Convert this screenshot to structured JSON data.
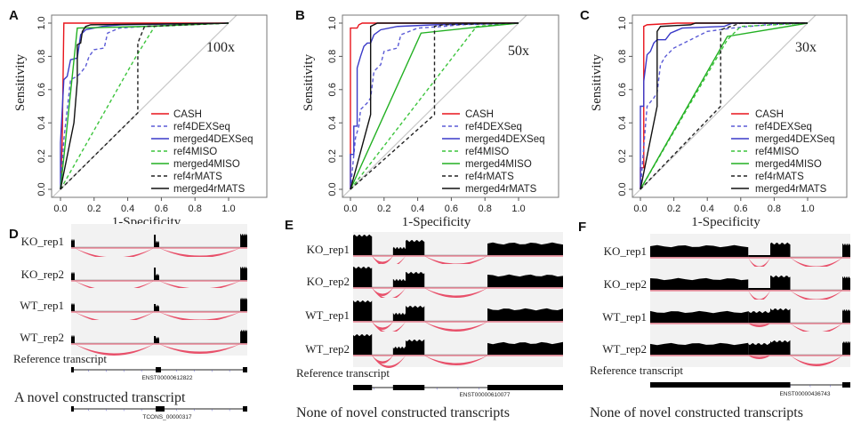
{
  "legend_names": [
    "CASH",
    "ref4DEXSeq",
    "merged4DEXSeq",
    "ref4MISO",
    "merged4MISO",
    "ref4rMATS",
    "merged4rMATS"
  ],
  "series_styles": [
    {
      "color": "#e8141c",
      "dashed": false
    },
    {
      "color": "#5b5bd6",
      "dashed": true
    },
    {
      "color": "#3a3ac8",
      "dashed": false
    },
    {
      "color": "#3cc43c",
      "dashed": true
    },
    {
      "color": "#22b022",
      "dashed": false
    },
    {
      "color": "#222222",
      "dashed": true
    },
    {
      "color": "#111111",
      "dashed": false
    }
  ],
  "chart_data": [
    {
      "type": "line",
      "panel": "A",
      "annotation": "100x",
      "xlabel": "1-Specificity",
      "ylabel": "Sensitivity",
      "xlim": [
        0,
        1
      ],
      "ylim": [
        0,
        1
      ],
      "xticks": [
        "0.0",
        "0.2",
        "0.4",
        "0.6",
        "0.8",
        "1.0"
      ],
      "yticks": [
        "0.0",
        "0.2",
        "0.4",
        "0.6",
        "0.8",
        "1.0"
      ],
      "legend": "bottom-right",
      "reference_diagonal": true,
      "series": [
        {
          "name": "CASH",
          "points": [
            [
              0,
              0
            ],
            [
              0.01,
              0.28
            ],
            [
              0.02,
              1
            ],
            [
              1,
              1
            ]
          ]
        },
        {
          "name": "ref4DEXSeq",
          "points": [
            [
              0,
              0
            ],
            [
              0.02,
              0.3
            ],
            [
              0.04,
              0.48
            ],
            [
              0.06,
              0.66
            ],
            [
              0.1,
              0.68
            ],
            [
              0.12,
              0.7
            ],
            [
              0.15,
              0.74
            ],
            [
              0.17,
              0.8
            ],
            [
              0.2,
              0.84
            ],
            [
              0.26,
              0.85
            ],
            [
              0.28,
              0.94
            ],
            [
              0.35,
              0.97
            ],
            [
              0.5,
              0.98
            ],
            [
              1,
              1
            ]
          ]
        },
        {
          "name": "merged4DEXSeq",
          "points": [
            [
              0,
              0
            ],
            [
              0,
              0.28
            ],
            [
              0.02,
              0.66
            ],
            [
              0.04,
              0.68
            ],
            [
              0.06,
              0.78
            ],
            [
              0.1,
              0.79
            ],
            [
              0.12,
              0.93
            ],
            [
              0.15,
              0.96
            ],
            [
              0.2,
              0.97
            ],
            [
              0.25,
              0.98
            ],
            [
              0.36,
              0.99
            ],
            [
              1,
              1
            ]
          ]
        },
        {
          "name": "ref4MISO",
          "points": [
            [
              0,
              0
            ],
            [
              0.45,
              0.8
            ],
            [
              0.56,
              0.98
            ],
            [
              1,
              1
            ]
          ]
        },
        {
          "name": "merged4MISO",
          "points": [
            [
              0,
              0
            ],
            [
              0.1,
              0.97
            ],
            [
              0.5,
              0.98
            ],
            [
              1,
              1
            ]
          ]
        },
        {
          "name": "ref4rMATS",
          "points": [
            [
              0,
              0
            ],
            [
              0.46,
              0.46
            ],
            [
              0.46,
              0.88
            ],
            [
              0.5,
              0.98
            ],
            [
              1,
              1
            ]
          ]
        },
        {
          "name": "merged4rMATS",
          "points": [
            [
              0,
              0
            ],
            [
              0.08,
              0.4
            ],
            [
              0.1,
              0.65
            ],
            [
              0.1,
              0.87
            ],
            [
              0.12,
              0.88
            ],
            [
              0.13,
              0.95
            ],
            [
              0.15,
              0.98
            ],
            [
              0.18,
              0.99
            ],
            [
              1,
              1
            ]
          ]
        }
      ]
    },
    {
      "type": "line",
      "panel": "B",
      "annotation": "50x",
      "xlabel": "1-Specificity",
      "ylabel": "Sensitivity",
      "xlim": [
        0,
        1
      ],
      "ylim": [
        0,
        1
      ],
      "xticks": [
        "0.0",
        "0.2",
        "0.4",
        "0.6",
        "0.8",
        "1.0"
      ],
      "yticks": [
        "0.0",
        "0.2",
        "0.4",
        "0.6",
        "0.8",
        "1.0"
      ],
      "legend": "bottom-right",
      "reference_diagonal": true,
      "series": [
        {
          "name": "CASH",
          "points": [
            [
              0,
              0
            ],
            [
              0,
              0.97
            ],
            [
              0.04,
              0.97
            ],
            [
              0.05,
              0.99
            ],
            [
              0.07,
              1
            ],
            [
              1,
              1
            ]
          ]
        },
        {
          "name": "ref4DEXSeq",
          "points": [
            [
              0,
              0
            ],
            [
              0.03,
              0.31
            ],
            [
              0.05,
              0.38
            ],
            [
              0.06,
              0.48
            ],
            [
              0.1,
              0.52
            ],
            [
              0.12,
              0.55
            ],
            [
              0.14,
              0.71
            ],
            [
              0.18,
              0.75
            ],
            [
              0.2,
              0.83
            ],
            [
              0.28,
              0.85
            ],
            [
              0.3,
              0.93
            ],
            [
              0.4,
              0.97
            ],
            [
              0.55,
              0.98
            ],
            [
              0.65,
              0.99
            ],
            [
              1,
              1
            ]
          ]
        },
        {
          "name": "merged4DEXSeq",
          "points": [
            [
              0,
              0
            ],
            [
              0,
              0.21
            ],
            [
              0.02,
              0.21
            ],
            [
              0.02,
              0.38
            ],
            [
              0.04,
              0.38
            ],
            [
              0.04,
              0.73
            ],
            [
              0.06,
              0.8
            ],
            [
              0.08,
              0.86
            ],
            [
              0.1,
              0.88
            ],
            [
              0.12,
              0.88
            ],
            [
              0.14,
              0.93
            ],
            [
              0.18,
              0.96
            ],
            [
              0.28,
              0.98
            ],
            [
              0.5,
              0.99
            ],
            [
              1,
              1
            ]
          ]
        },
        {
          "name": "ref4MISO",
          "points": [
            [
              0,
              0
            ],
            [
              0.75,
              0.98
            ],
            [
              1,
              1
            ]
          ]
        },
        {
          "name": "merged4MISO",
          "points": [
            [
              0,
              0
            ],
            [
              0.42,
              0.94
            ],
            [
              0.7,
              0.97
            ],
            [
              1,
              1
            ]
          ]
        },
        {
          "name": "ref4rMATS",
          "points": [
            [
              0,
              0
            ],
            [
              0.5,
              0.45
            ],
            [
              0.5,
              0.98
            ],
            [
              0.55,
              0.99
            ],
            [
              1,
              1
            ]
          ]
        },
        {
          "name": "merged4rMATS",
          "points": [
            [
              0,
              0
            ],
            [
              0.12,
              0.45
            ],
            [
              0.12,
              0.98
            ],
            [
              0.16,
              1
            ],
            [
              1,
              1
            ]
          ]
        }
      ]
    },
    {
      "type": "line",
      "panel": "C",
      "annotation": "30x",
      "xlabel": "1-Specificity",
      "ylabel": "Sensitivity",
      "xlim": [
        0,
        1
      ],
      "ylim": [
        0,
        1
      ],
      "xticks": [
        "0.0",
        "0.2",
        "0.4",
        "0.6",
        "0.8",
        "1.0"
      ],
      "yticks": [
        "0.0",
        "0.2",
        "0.4",
        "0.6",
        "0.8",
        "1.0"
      ],
      "legend": "bottom-right",
      "reference_diagonal": true,
      "series": [
        {
          "name": "CASH",
          "points": [
            [
              0,
              0
            ],
            [
              0,
              0.13
            ],
            [
              0.02,
              0.13
            ],
            [
              0.02,
              0.98
            ],
            [
              0.04,
              0.99
            ],
            [
              0.22,
              1
            ],
            [
              1,
              1
            ]
          ]
        },
        {
          "name": "ref4DEXSeq",
          "points": [
            [
              0,
              0
            ],
            [
              0.03,
              0.38
            ],
            [
              0.04,
              0.5
            ],
            [
              0.08,
              0.55
            ],
            [
              0.1,
              0.58
            ],
            [
              0.12,
              0.75
            ],
            [
              0.15,
              0.8
            ],
            [
              0.2,
              0.85
            ],
            [
              0.3,
              0.9
            ],
            [
              0.4,
              0.95
            ],
            [
              0.55,
              0.97
            ],
            [
              0.75,
              0.99
            ],
            [
              1,
              1
            ]
          ]
        },
        {
          "name": "merged4DEXSeq",
          "points": [
            [
              0,
              0
            ],
            [
              0,
              0.5
            ],
            [
              0.02,
              0.5
            ],
            [
              0.02,
              0.65
            ],
            [
              0.04,
              0.81
            ],
            [
              0.06,
              0.83
            ],
            [
              0.08,
              0.88
            ],
            [
              0.1,
              0.9
            ],
            [
              0.15,
              0.9
            ],
            [
              0.18,
              0.94
            ],
            [
              0.25,
              0.97
            ],
            [
              0.5,
              0.98
            ],
            [
              0.55,
              1
            ],
            [
              1,
              1
            ]
          ]
        },
        {
          "name": "ref4MISO",
          "points": [
            [
              0,
              0
            ],
            [
              0.52,
              0.9
            ],
            [
              0.6,
              0.98
            ],
            [
              1,
              1
            ]
          ]
        },
        {
          "name": "merged4MISO",
          "points": [
            [
              0,
              0
            ],
            [
              0.52,
              0.92
            ],
            [
              1,
              1
            ]
          ]
        },
        {
          "name": "ref4rMATS",
          "points": [
            [
              0,
              0
            ],
            [
              0.48,
              0.5
            ],
            [
              0.48,
              0.96
            ],
            [
              0.6,
              1
            ],
            [
              1,
              1
            ]
          ]
        },
        {
          "name": "merged4rMATS",
          "points": [
            [
              0,
              0
            ],
            [
              0.1,
              0.5
            ],
            [
              0.1,
              0.95
            ],
            [
              0.12,
              0.98
            ],
            [
              0.3,
              0.99
            ],
            [
              0.33,
              1
            ],
            [
              1,
              1
            ]
          ]
        }
      ]
    }
  ],
  "sashimi": [
    {
      "panel": "D",
      "samples": [
        "KO_rep1",
        "KO_rep2",
        "WT_rep1",
        "WT_rep2"
      ],
      "reference_label": "Reference transcript",
      "reference_id": "ENST00000612822",
      "novel_label": "A novel constructed transcript",
      "novel_id": "TCONS_00000317"
    },
    {
      "panel": "E",
      "samples": [
        "KO_rep1",
        "KO_rep2",
        "WT_rep1",
        "WT_rep2"
      ],
      "reference_label": "Reference transcript",
      "reference_id": "ENST00000610077",
      "novel_label": "None of novel constructed transcripts"
    },
    {
      "panel": "F",
      "samples": [
        "KO_rep1",
        "KO_rep2",
        "WT_rep1",
        "WT_rep2"
      ],
      "reference_label": "Reference transcript",
      "reference_id": "ENST00000436743",
      "novel_label": "None of novel constructed transcripts"
    }
  ],
  "colors": {
    "coverage": "#000000",
    "junction": "#e8506a",
    "track_bg": "#f2f2f2",
    "diagonal": "#c8c8c8",
    "intron": "#6a6ad8"
  }
}
